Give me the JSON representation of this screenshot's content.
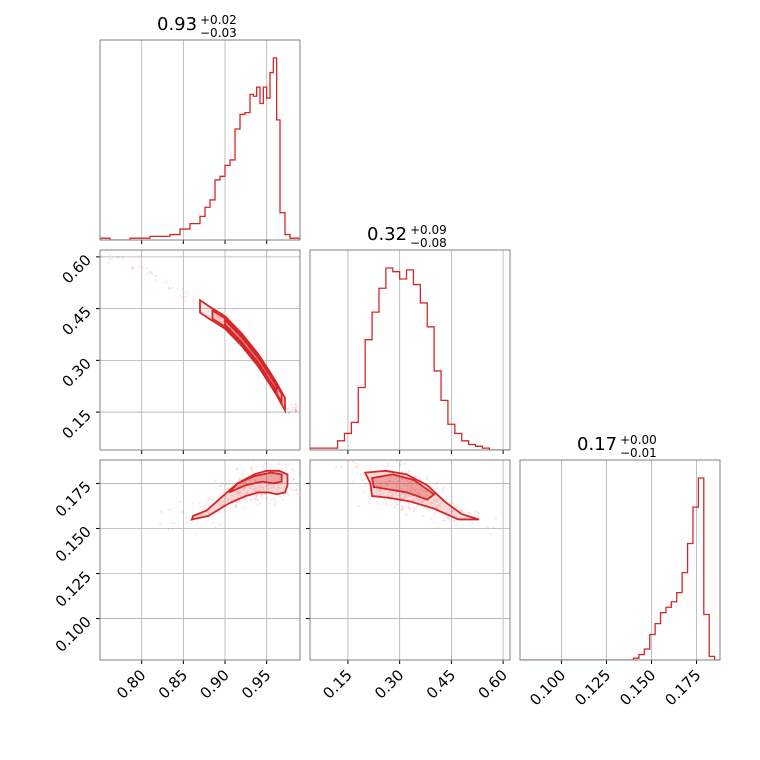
{
  "chart_data": {
    "type": "corner",
    "color": "#d62728",
    "grid": true,
    "parameters": [
      {
        "range": [
          0.75,
          0.99
        ],
        "ticks": [
          0.8,
          0.85,
          0.9,
          0.95
        ],
        "tick_labels": [
          "0.80",
          "0.85",
          "0.90",
          "0.95"
        ]
      },
      {
        "range": [
          0.04,
          0.62
        ],
        "ticks": [
          0.15,
          0.3,
          0.45,
          0.6
        ],
        "tick_labels": [
          "0.15",
          "0.30",
          "0.45",
          "0.60"
        ]
      },
      {
        "range": [
          0.077,
          0.188
        ],
        "ticks": [
          0.1,
          0.125,
          0.15,
          0.175
        ],
        "tick_labels": [
          "0.100",
          "0.125",
          "0.150",
          "0.175"
        ]
      }
    ],
    "titles": [
      {
        "value": "0.93",
        "plus": "+0.02",
        "minus": "−0.03"
      },
      {
        "value": "0.32",
        "plus": "+0.09",
        "minus": "−0.08"
      },
      {
        "value": "0.17",
        "plus": "+0.00",
        "minus": "−0.01"
      }
    ],
    "histograms": [
      {
        "param": 0,
        "bin_edges": [
          0.75,
          0.762,
          0.774,
          0.786,
          0.798,
          0.81,
          0.822,
          0.834,
          0.846,
          0.858,
          0.87,
          0.876,
          0.882,
          0.888,
          0.894,
          0.9,
          0.906,
          0.912,
          0.918,
          0.924,
          0.93,
          0.934,
          0.938,
          0.942,
          0.946,
          0.95,
          0.954,
          0.958,
          0.962,
          0.966,
          0.972,
          0.978,
          0.99
        ],
        "counts": [
          1,
          0,
          0,
          1,
          1,
          2,
          2,
          3,
          6,
          9,
          13,
          18,
          22,
          33,
          35,
          41,
          44,
          61,
          69,
          70,
          80,
          79,
          84,
          75,
          84,
          78,
          92,
          100,
          66,
          15,
          3,
          1
        ]
      },
      {
        "param": 1,
        "bin_edges": [
          0.04,
          0.12,
          0.14,
          0.16,
          0.18,
          0.2,
          0.22,
          0.24,
          0.26,
          0.28,
          0.3,
          0.32,
          0.34,
          0.36,
          0.38,
          0.4,
          0.42,
          0.44,
          0.46,
          0.48,
          0.5,
          0.52,
          0.54,
          0.56,
          0.62
        ],
        "counts": [
          1,
          5,
          9,
          15,
          34,
          60,
          75,
          88,
          99,
          97,
          93,
          98,
          90,
          80,
          67,
          43,
          27,
          14,
          9,
          5,
          3,
          2,
          1,
          0
        ]
      },
      {
        "param": 2,
        "bin_edges": [
          0.077,
          0.14,
          0.143,
          0.146,
          0.149,
          0.152,
          0.155,
          0.158,
          0.161,
          0.164,
          0.167,
          0.17,
          0.173,
          0.176,
          0.179,
          0.182,
          0.185,
          0.188
        ],
        "counts": [
          0,
          1,
          3,
          6,
          14,
          20,
          26,
          29,
          32,
          37,
          48,
          64,
          84,
          100,
          25,
          2,
          0
        ]
      }
    ],
    "joint_2d": [
      {
        "x_param": 0,
        "y_param": 1,
        "ridge": [
          [
            0.75,
            0.61
          ],
          [
            0.8,
            0.56
          ],
          [
            0.85,
            0.49
          ],
          [
            0.88,
            0.44
          ],
          [
            0.9,
            0.41
          ],
          [
            0.92,
            0.36
          ],
          [
            0.94,
            0.3
          ],
          [
            0.96,
            0.225
          ],
          [
            0.975,
            0.16
          ]
        ]
      },
      {
        "x_param": 0,
        "y_param": 2,
        "contours": {
          "outer": [
            [
              0.86,
              0.155
            ],
            [
              0.88,
              0.157
            ],
            [
              0.905,
              0.164
            ],
            [
              0.925,
              0.168
            ],
            [
              0.94,
              0.17
            ],
            [
              0.952,
              0.17
            ],
            [
              0.962,
              0.169
            ],
            [
              0.972,
              0.17
            ],
            [
              0.975,
              0.174
            ],
            [
              0.975,
              0.18
            ],
            [
              0.965,
              0.182
            ],
            [
              0.95,
              0.182
            ],
            [
              0.935,
              0.18
            ],
            [
              0.915,
              0.175
            ],
            [
              0.895,
              0.167
            ],
            [
              0.878,
              0.16
            ],
            [
              0.862,
              0.157
            ]
          ],
          "inner": [
            [
              0.905,
              0.17
            ],
            [
              0.925,
              0.174
            ],
            [
              0.945,
              0.176
            ],
            [
              0.958,
              0.175
            ],
            [
              0.968,
              0.176
            ],
            [
              0.968,
              0.18
            ],
            [
              0.955,
              0.181
            ],
            [
              0.935,
              0.179
            ],
            [
              0.915,
              0.175
            ]
          ]
        }
      },
      {
        "x_param": 1,
        "y_param": 2,
        "contours": {
          "outer": [
            [
              0.2,
              0.181
            ],
            [
              0.26,
              0.182
            ],
            [
              0.32,
              0.18
            ],
            [
              0.38,
              0.174
            ],
            [
              0.43,
              0.165
            ],
            [
              0.48,
              0.158
            ],
            [
              0.53,
              0.155
            ],
            [
              0.47,
              0.155
            ],
            [
              0.4,
              0.161
            ],
            [
              0.33,
              0.165
            ],
            [
              0.27,
              0.167
            ],
            [
              0.22,
              0.168
            ],
            [
              0.215,
              0.175
            ]
          ],
          "inner": [
            [
              0.22,
              0.178
            ],
            [
              0.28,
              0.18
            ],
            [
              0.34,
              0.177
            ],
            [
              0.4,
              0.169
            ],
            [
              0.38,
              0.166
            ],
            [
              0.32,
              0.17
            ],
            [
              0.26,
              0.172
            ],
            [
              0.225,
              0.173
            ]
          ]
        }
      }
    ]
  }
}
